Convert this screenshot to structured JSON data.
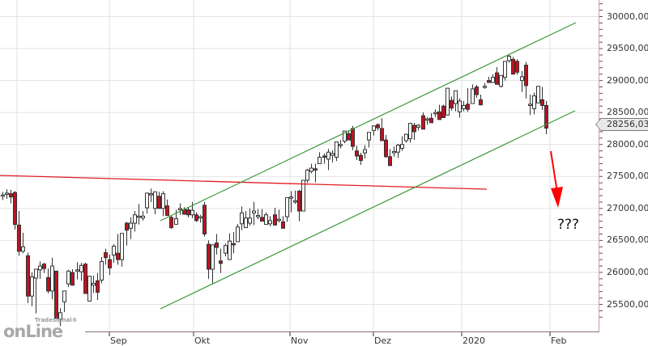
{
  "chart_data": {
    "type": "candlestick",
    "title": "",
    "xlabel": "",
    "ylabel": "",
    "ylim": [
      25200,
      30300
    ],
    "grid": true,
    "y_ticks": [
      "30000,00",
      "29500,00",
      "29000,00",
      "28500,00",
      "28000,00",
      "27500,00",
      "27000,00",
      "26500,00",
      "26000,00",
      "25500,00"
    ],
    "x_ticks": [
      "Sep",
      "Okt",
      "Nov",
      "Dez",
      "2020",
      "Feb"
    ],
    "last_price": "28256,03",
    "annotations": [
      "???"
    ],
    "colors": {
      "up": "#ffffff",
      "down": "#c0111f",
      "wick": "#333333",
      "channel": "#3a9a3a",
      "resistance": "#e01c24",
      "arrow": "#ff0000",
      "grid": "#e2e2e2"
    },
    "lines": {
      "channel_upper": {
        "from": [
          "mid-Sep",
          26710
        ],
        "to": [
          "early-Feb",
          29915
        ]
      },
      "channel_lower": {
        "from": [
          "mid-Sep",
          25430
        ],
        "to": [
          "early-Feb",
          28420
        ]
      },
      "resistance": {
        "from": [
          "Aug",
          27420
        ],
        "to": [
          "Jan",
          27230
        ]
      },
      "arrow": {
        "from": [
          "Feb",
          27900
        ],
        "to": [
          "Feb",
          26850
        ]
      }
    },
    "candles": [
      [
        27200,
        27260,
        27130,
        27210
      ],
      [
        27220,
        27300,
        27150,
        27240
      ],
      [
        27230,
        27290,
        27080,
        27180
      ],
      [
        27250,
        27270,
        26670,
        26750
      ],
      [
        26740,
        26960,
        26260,
        26330
      ],
      [
        26330,
        26620,
        26300,
        26400
      ],
      [
        26260,
        26310,
        25520,
        25630
      ],
      [
        25630,
        26000,
        25470,
        25930
      ],
      [
        25910,
        26040,
        25360,
        26050
      ],
      [
        26040,
        26170,
        25900,
        26100
      ],
      [
        26130,
        26150,
        25990,
        26060
      ],
      [
        25920,
        26060,
        25670,
        25710
      ],
      [
        25710,
        26230,
        25580,
        26100
      ],
      [
        26020,
        26010,
        25320,
        25280
      ],
      [
        25270,
        25440,
        25160,
        25370
      ],
      [
        25540,
        25700,
        25380,
        25710
      ],
      [
        25820,
        26040,
        25770,
        26020
      ],
      [
        26000,
        26050,
        25790,
        25800
      ],
      [
        26040,
        26160,
        25890,
        26040
      ],
      [
        26010,
        26150,
        25870,
        26110
      ],
      [
        26130,
        26150,
        25760,
        25670
      ],
      [
        25550,
        25680,
        25760,
        25940
      ],
      [
        25800,
        25950,
        25680,
        25830
      ],
      [
        25870,
        25990,
        25570,
        25690
      ],
      [
        25880,
        26240,
        25830,
        26170
      ],
      [
        26310,
        26370,
        26120,
        26230
      ],
      [
        26200,
        26280,
        25960,
        26070
      ],
      [
        26270,
        26440,
        26150,
        26410
      ],
      [
        26300,
        26600,
        26120,
        26200
      ],
      [
        26200,
        26460,
        26090,
        26610
      ],
      [
        26770,
        26790,
        26420,
        26660
      ],
      [
        26690,
        26860,
        26520,
        26770
      ],
      [
        26770,
        26960,
        26640,
        26900
      ],
      [
        26870,
        27070,
        26750,
        26880
      ],
      [
        26850,
        26960,
        26810,
        26880
      ],
      [
        27010,
        27190,
        26920,
        27240
      ],
      [
        27220,
        27310,
        27100,
        27230
      ],
      [
        27000,
        27150,
        26910,
        27260
      ],
      [
        27190,
        27260,
        27030,
        27000
      ],
      [
        27000,
        27270,
        26880,
        27230
      ],
      [
        27040,
        27140,
        26920,
        26890
      ],
      [
        26860,
        26890,
        26680,
        26700
      ],
      [
        26750,
        26980,
        26750,
        26840
      ],
      [
        26980,
        27080,
        26900,
        27000
      ],
      [
        26980,
        27020,
        26900,
        26910
      ],
      [
        26980,
        27020,
        26860,
        26900
      ],
      [
        26900,
        27100,
        26850,
        26970
      ],
      [
        26900,
        26940,
        26790,
        26810
      ],
      [
        26860,
        26900,
        26780,
        26870
      ],
      [
        27050,
        27100,
        26560,
        26600
      ],
      [
        26440,
        26500,
        25900,
        26050
      ],
      [
        26050,
        26440,
        25820,
        26430
      ],
      [
        26460,
        26600,
        26280,
        26390
      ],
      [
        26180,
        26370,
        25990,
        26140
      ],
      [
        26300,
        26450,
        26250,
        26420
      ],
      [
        26200,
        26610,
        26350,
        26490
      ],
      [
        26450,
        26630,
        26300,
        26430
      ],
      [
        26480,
        26760,
        26540,
        26710
      ],
      [
        26760,
        27030,
        26660,
        26930
      ],
      [
        26700,
        26960,
        26700,
        26850
      ],
      [
        26770,
        27000,
        26730,
        26850
      ],
      [
        26930,
        27100,
        26740,
        26960
      ],
      [
        26870,
        26990,
        26830,
        26890
      ],
      [
        26860,
        26990,
        26810,
        26800
      ],
      [
        26750,
        26940,
        26750,
        26900
      ],
      [
        26760,
        26880,
        26720,
        26810
      ],
      [
        26900,
        27010,
        26740,
        26740
      ],
      [
        26820,
        26980,
        26780,
        26830
      ],
      [
        26790,
        26880,
        26740,
        26690
      ],
      [
        26870,
        27140,
        26790,
        27170
      ],
      [
        27160,
        27270,
        26940,
        27180
      ],
      [
        27110,
        27280,
        27070,
        27120
      ],
      [
        27270,
        27290,
        26800,
        26960
      ],
      [
        26960,
        27320,
        27000,
        27440
      ],
      [
        27440,
        27620,
        27400,
        27600
      ],
      [
        27580,
        27700,
        27550,
        27630
      ],
      [
        27620,
        27700,
        27410,
        27610
      ],
      [
        27700,
        27880,
        27700,
        27800
      ],
      [
        27820,
        27860,
        27700,
        27800
      ],
      [
        27770,
        27930,
        27600,
        27880
      ],
      [
        27830,
        27910,
        27720,
        27860
      ],
      [
        27800,
        28040,
        27740,
        28040
      ],
      [
        27990,
        28070,
        27940,
        28000
      ],
      [
        28050,
        28170,
        28020,
        28210
      ],
      [
        28170,
        28220,
        28150,
        28070
      ],
      [
        28250,
        28290,
        27910,
        27970
      ],
      [
        27900,
        27980,
        27760,
        27820
      ],
      [
        27830,
        27870,
        27680,
        27750
      ],
      [
        27870,
        27990,
        27780,
        27920
      ],
      [
        28070,
        28140,
        27950,
        28190
      ],
      [
        28220,
        28300,
        28140,
        28290
      ],
      [
        28310,
        28330,
        28220,
        28260
      ],
      [
        28250,
        28410,
        28180,
        28060
      ],
      [
        28070,
        28150,
        27790,
        27810
      ],
      [
        27810,
        27930,
        27710,
        27670
      ],
      [
        27870,
        27970,
        27810,
        27890
      ],
      [
        27880,
        28010,
        27790,
        27990
      ],
      [
        27940,
        28130,
        27900,
        28000
      ],
      [
        28060,
        28170,
        28030,
        28160
      ],
      [
        28090,
        28330,
        28030,
        28330
      ],
      [
        28300,
        28340,
        28070,
        28200
      ],
      [
        28270,
        28320,
        28220,
        28300
      ],
      [
        28450,
        28500,
        28420,
        28240
      ],
      [
        28380,
        28430,
        28310,
        28400
      ],
      [
        28410,
        28490,
        28380,
        28340
      ],
      [
        28480,
        28550,
        28430,
        28500
      ],
      [
        28510,
        28620,
        28490,
        28390
      ],
      [
        28600,
        28620,
        28480,
        28420
      ],
      [
        28460,
        28680,
        28480,
        28880
      ],
      [
        28690,
        28750,
        28530,
        28570
      ],
      [
        28640,
        28790,
        28520,
        28840
      ],
      [
        28510,
        28720,
        28420,
        28680
      ],
      [
        28560,
        28680,
        28520,
        28610
      ],
      [
        28630,
        28880,
        28510,
        28550
      ],
      [
        28640,
        28940,
        28650,
        28870
      ],
      [
        28900,
        28930,
        28730,
        28780
      ],
      [
        28700,
        28780,
        28610,
        28620
      ],
      [
        28900,
        28960,
        28870,
        28910
      ],
      [
        29000,
        29060,
        28960,
        28970
      ],
      [
        28970,
        29100,
        28960,
        29050
      ],
      [
        29120,
        29210,
        28950,
        28940
      ],
      [
        28910,
        29080,
        28890,
        29080
      ],
      [
        29050,
        29180,
        29000,
        29300
      ],
      [
        29310,
        29410,
        29280,
        29380
      ],
      [
        29330,
        29370,
        29170,
        29100
      ],
      [
        29300,
        29330,
        29090,
        29130
      ],
      [
        29000,
        29150,
        28820,
        29060
      ],
      [
        29240,
        29290,
        28720,
        28920
      ],
      [
        28610,
        28780,
        28460,
        28630
      ],
      [
        28560,
        28810,
        28470,
        28760
      ],
      [
        28650,
        28870,
        28740,
        28910
      ],
      [
        28700,
        28900,
        28540,
        28610
      ],
      [
        28610,
        28680,
        28160,
        28256
      ]
    ]
  },
  "axis": {
    "y_labels": [
      "30000,00",
      "29500,00",
      "29000,00",
      "28500,00",
      "28000,00",
      "27500,00",
      "27000,00",
      "26500,00",
      "26000,00",
      "25500,00"
    ],
    "x_labels": [
      "Sep",
      "Okt",
      "Nov",
      "Dez",
      "2020",
      "Feb"
    ],
    "last_price": "28256,03"
  },
  "annotation": {
    "text": "???"
  },
  "logo": {
    "brand": "Tradesignal®",
    "word": "onLine"
  }
}
